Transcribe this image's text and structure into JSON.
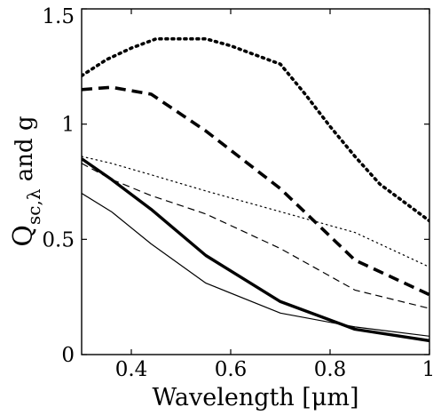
{
  "chart_data": {
    "type": "line",
    "title": "",
    "xlabel": "Wavelength [μm]",
    "ylabel": {
      "main": "Q",
      "subscript": "sc,λ",
      "rest": " and g"
    },
    "xlim": [
      0.3,
      1.0
    ],
    "ylim": [
      0,
      1.5
    ],
    "x_ticks": [
      0.4,
      0.6,
      0.8,
      1.0
    ],
    "x_tick_labels": [
      "0.4",
      "0.6",
      "0.8",
      "1"
    ],
    "y_ticks": [
      0,
      0.5,
      1.0,
      1.5
    ],
    "y_tick_labels": [
      "0",
      "0.5",
      "1",
      "1.5"
    ],
    "grid": false,
    "legend": "none",
    "series": [
      {
        "style": "dotted-thick",
        "x": [
          0.3,
          0.35,
          0.4,
          0.45,
          0.5,
          0.55,
          0.6,
          0.65,
          0.7,
          0.75,
          0.8,
          0.85,
          0.9,
          0.95,
          1.0
        ],
        "y": [
          1.21,
          1.28,
          1.33,
          1.37,
          1.37,
          1.37,
          1.34,
          1.3,
          1.26,
          1.13,
          0.99,
          0.86,
          0.74,
          0.66,
          0.58
        ]
      },
      {
        "style": "dashed-thick",
        "x": [
          0.3,
          0.36,
          0.44,
          0.55,
          0.7,
          0.85,
          1.0
        ],
        "y": [
          1.15,
          1.16,
          1.13,
          0.97,
          0.72,
          0.41,
          0.26
        ]
      },
      {
        "style": "dotted-thin",
        "x": [
          0.3,
          0.36,
          0.44,
          0.55,
          0.7,
          0.85,
          1.0
        ],
        "y": [
          0.86,
          0.83,
          0.78,
          0.71,
          0.62,
          0.53,
          0.38
        ]
      },
      {
        "style": "dashed-thin",
        "x": [
          0.3,
          0.36,
          0.44,
          0.55,
          0.7,
          0.85,
          1.0
        ],
        "y": [
          0.83,
          0.76,
          0.69,
          0.61,
          0.46,
          0.28,
          0.2
        ]
      },
      {
        "style": "solid-thick",
        "x": [
          0.3,
          0.36,
          0.44,
          0.55,
          0.7,
          0.85,
          1.0
        ],
        "y": [
          0.85,
          0.76,
          0.63,
          0.43,
          0.23,
          0.11,
          0.06
        ]
      },
      {
        "style": "solid-thin",
        "x": [
          0.3,
          0.36,
          0.44,
          0.55,
          0.7,
          0.85,
          1.0
        ],
        "y": [
          0.7,
          0.62,
          0.48,
          0.31,
          0.18,
          0.12,
          0.08
        ]
      }
    ]
  }
}
